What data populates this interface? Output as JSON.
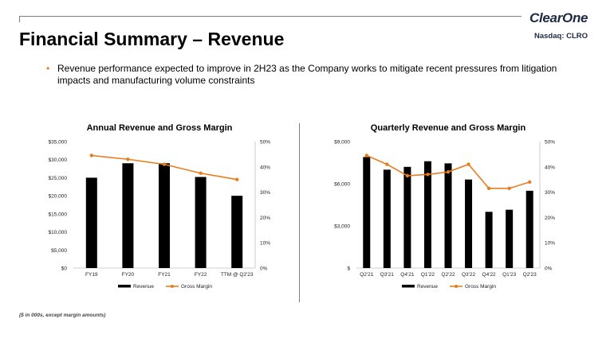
{
  "header": {
    "title": "Financial Summary – Revenue",
    "logo_text": "ClearOne",
    "ticker": "Nasdaq: CLRO"
  },
  "bullet": {
    "text": "Revenue performance expected to improve in 2H23 as the Company works to mitigate recent pressures from litigation impacts and manufacturing  volume  constraints"
  },
  "footnote": "($ in 000s, except margin amounts)",
  "colors": {
    "bar": "#000000",
    "line": "#e87d1e"
  },
  "chart_data": [
    {
      "type": "bar",
      "title": "Annual Revenue and Gross Margin",
      "categories": [
        "FY19",
        "FY20",
        "FY21",
        "FY22",
        "TTM @ Q2'23"
      ],
      "series": [
        {
          "name": "Revenue",
          "type": "bar",
          "axis": "left",
          "values": [
            25000,
            29000,
            29000,
            25200,
            20000
          ]
        },
        {
          "name": "Gross Margin",
          "type": "line",
          "axis": "right",
          "values": [
            44.5,
            43,
            41,
            37.5,
            35
          ]
        }
      ],
      "y_left": {
        "min": 0,
        "max": 35000,
        "ticks": [
          0,
          5000,
          10000,
          15000,
          20000,
          25000,
          30000,
          35000
        ],
        "tick_labels": [
          "$0",
          "$5,000",
          "$10,000",
          "$15,000",
          "$20,000",
          "$25,000",
          "$30,000",
          "$35,000"
        ]
      },
      "y_right": {
        "min": 0,
        "max": 50,
        "ticks": [
          0,
          10,
          20,
          30,
          40,
          50
        ],
        "tick_labels": [
          "0%",
          "10%",
          "20%",
          "30%",
          "40%",
          "50%"
        ]
      },
      "legend": "bottom",
      "grid": false
    },
    {
      "type": "bar",
      "title": "Quarterly Revenue and Gross Margin",
      "categories": [
        "Q2'21",
        "Q3'21",
        "Q4'21",
        "Q1'22",
        "Q2'22",
        "Q3'22",
        "Q4'22",
        "Q1'23",
        "Q2'23"
      ],
      "series": [
        {
          "name": "Revenue",
          "type": "bar",
          "axis": "left",
          "values": [
            7900,
            7000,
            7200,
            7600,
            7450,
            6300,
            4000,
            4150,
            5500
          ]
        },
        {
          "name": "Gross Margin",
          "type": "line",
          "axis": "right",
          "values": [
            44.5,
            41,
            36.5,
            37,
            38,
            41,
            31.5,
            31.5,
            34
          ]
        }
      ],
      "y_left": {
        "min": 0,
        "max": 9000,
        "ticks": [
          0,
          3000,
          6000,
          9000
        ],
        "tick_labels": [
          "$",
          "$3,000",
          "$6,000",
          "$9,000"
        ]
      },
      "y_right": {
        "min": 0,
        "max": 50,
        "ticks": [
          0,
          10,
          20,
          30,
          40,
          50
        ],
        "tick_labels": [
          "0%",
          "10%",
          "20%",
          "30%",
          "40%",
          "50%"
        ]
      },
      "legend": "bottom",
      "grid": false
    }
  ]
}
